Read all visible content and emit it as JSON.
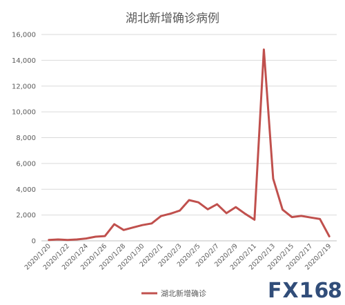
{
  "chart_data": {
    "type": "line",
    "title": "湖北新增确诊病例",
    "xlabel": "",
    "ylabel": "",
    "ylim": [
      0,
      16000
    ],
    "yticks": [
      0,
      2000,
      4000,
      6000,
      8000,
      10000,
      12000,
      14000,
      16000
    ],
    "ytick_labels": [
      "0",
      "2,000",
      "4,000",
      "6,000",
      "8,000",
      "10,000",
      "12,000",
      "14,000",
      "16,000"
    ],
    "x": [
      "2020/1/20",
      "2020/1/21",
      "2020/1/22",
      "2020/1/23",
      "2020/1/24",
      "2020/1/25",
      "2020/1/26",
      "2020/1/27",
      "2020/1/28",
      "2020/1/29",
      "2020/1/30",
      "2020/1/31",
      "2020/2/1",
      "2020/2/2",
      "2020/2/3",
      "2020/2/4",
      "2020/2/5",
      "2020/2/6",
      "2020/2/7",
      "2020/2/8",
      "2020/2/9",
      "2020/2/10",
      "2020/2/11",
      "2020/2/12",
      "2020/2/13",
      "2020/2/14",
      "2020/2/15",
      "2020/2/16",
      "2020/2/17",
      "2020/2/18",
      "2020/2/19"
    ],
    "xtick_labels": [
      "2020/1/20",
      "2020/1/22",
      "2020/1/24",
      "2020/1/26",
      "2020/1/28",
      "2020/1/30",
      "2020/2/1",
      "2020/2/3",
      "2020/2/5",
      "2020/2/7",
      "2020/2/9",
      "2020/2/11",
      "2020/2/13",
      "2020/2/15",
      "2020/2/17",
      "2020/2/19"
    ],
    "series": [
      {
        "name": "湖北新增确诊",
        "color": "#c0504d",
        "values": [
          72,
          105,
          69,
          105,
          180,
          323,
          371,
          1291,
          840,
          1032,
          1220,
          1347,
          1921,
          2103,
          2345,
          3156,
          2987,
          2447,
          2841,
          2147,
          2618,
          2097,
          1638,
          14840,
          4823,
          2420,
          1843,
          1933,
          1807,
          1693,
          349
        ]
      }
    ],
    "legend": "bottom",
    "grid": true
  },
  "watermark": {
    "text_main": "FX16",
    "text_tail": "8",
    "color": "#1b3a6b"
  }
}
